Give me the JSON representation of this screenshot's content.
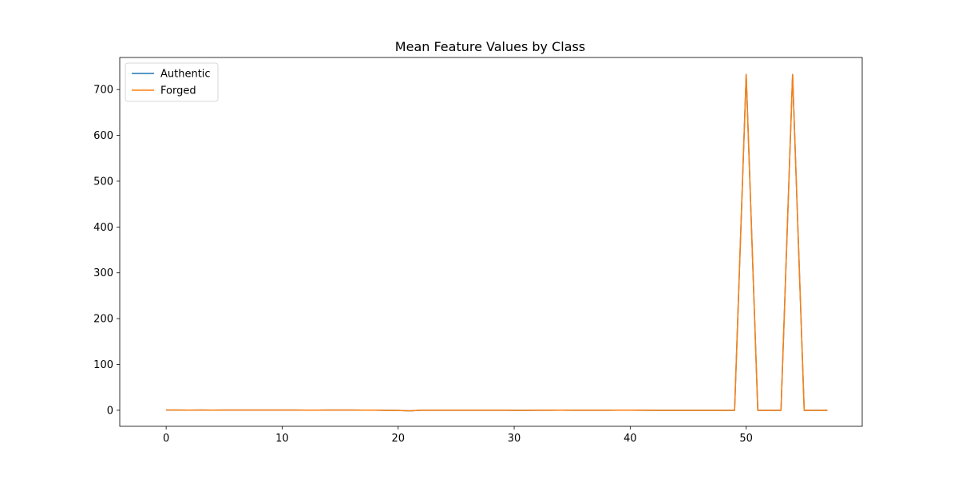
{
  "chart_data": {
    "type": "line",
    "title": "Mean Feature Values by Class",
    "xlabel": "",
    "ylabel": "",
    "xlim": [
      -4,
      60
    ],
    "ylim": [
      -35,
      770
    ],
    "xticks": [
      0,
      10,
      20,
      30,
      40,
      50
    ],
    "yticks": [
      0,
      100,
      200,
      300,
      400,
      500,
      600,
      700
    ],
    "legend_position": "top-left",
    "grid": false,
    "x": [
      0,
      1,
      2,
      3,
      4,
      5,
      6,
      7,
      8,
      9,
      10,
      11,
      12,
      13,
      14,
      15,
      16,
      17,
      18,
      19,
      20,
      21,
      22,
      23,
      24,
      25,
      26,
      27,
      28,
      29,
      30,
      31,
      32,
      33,
      34,
      35,
      36,
      37,
      38,
      39,
      40,
      41,
      42,
      43,
      44,
      45,
      46,
      47,
      48,
      49,
      50,
      51,
      52,
      53,
      54,
      55,
      56,
      57
    ],
    "series": [
      {
        "name": "Authentic",
        "color": "#1f77b4",
        "values": [
          0.5,
          0.5,
          0.3,
          0.5,
          0.2,
          0.4,
          0.4,
          0.5,
          0.4,
          0.5,
          0.4,
          0.4,
          0.3,
          0.3,
          0.4,
          0.4,
          0.4,
          0.3,
          0.2,
          -0.2,
          -0.3,
          -1.2,
          0.1,
          0.1,
          0.1,
          0.1,
          0.1,
          0.0,
          0.0,
          0.0,
          -0.1,
          -0.1,
          0.0,
          0.0,
          0.2,
          0.1,
          0.0,
          0.0,
          0.1,
          0.3,
          0.3,
          0.1,
          -0.1,
          -0.1,
          -0.1,
          -0.2,
          -0.2,
          -0.2,
          -0.2,
          -0.2,
          733,
          -0.2,
          -0.2,
          -0.2,
          733,
          -0.2,
          -0.2,
          -0.2
        ]
      },
      {
        "name": "Forged",
        "color": "#ff7f0e",
        "values": [
          0.5,
          0.5,
          0.3,
          0.5,
          0.2,
          0.4,
          0.4,
          0.5,
          0.4,
          0.5,
          0.4,
          0.4,
          0.3,
          0.3,
          0.4,
          0.4,
          0.4,
          0.3,
          0.2,
          -0.2,
          -0.3,
          -1.2,
          0.1,
          0.1,
          0.1,
          0.1,
          0.1,
          0.0,
          0.0,
          0.0,
          -0.1,
          -0.1,
          0.0,
          0.0,
          0.2,
          0.1,
          0.0,
          0.0,
          0.1,
          0.3,
          0.3,
          0.1,
          -0.1,
          -0.1,
          -0.1,
          -0.2,
          -0.2,
          -0.2,
          -0.2,
          -0.2,
          733,
          -0.2,
          -0.2,
          -0.2,
          733,
          -0.2,
          -0.2,
          -0.2
        ]
      }
    ]
  }
}
